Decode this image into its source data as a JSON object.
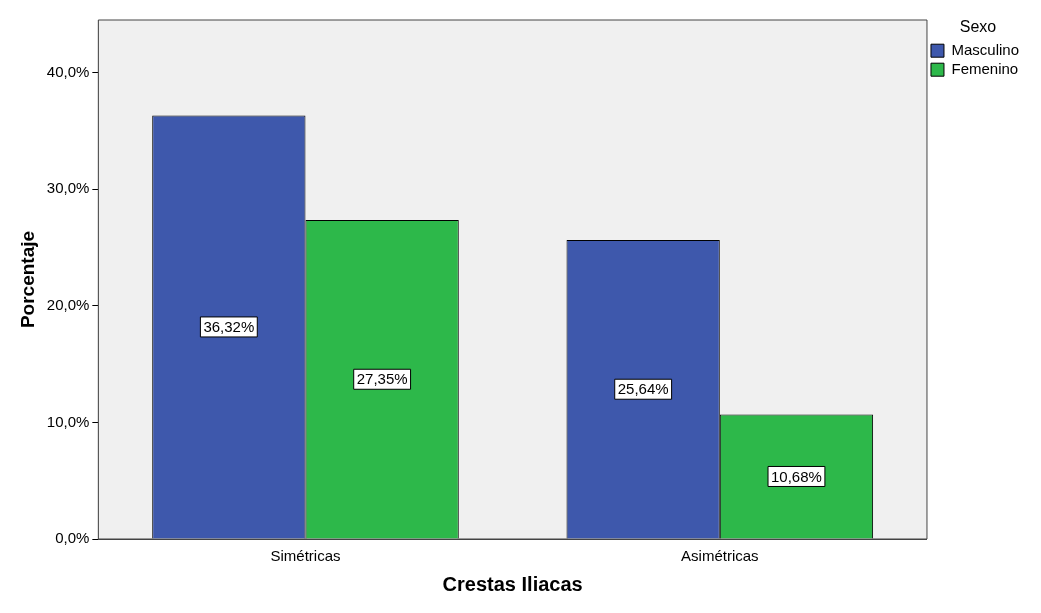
{
  "chart_data": {
    "type": "bar",
    "xlabel": "Crestas Iliacas",
    "ylabel": "Porcentaje",
    "legend_title": "Sexo",
    "legend": "top right",
    "grid": false,
    "categories": [
      "Simétricas",
      "Asimétricas"
    ],
    "series": [
      {
        "name": "Masculino",
        "color": "#3e58ac",
        "values": [
          36.32,
          25.64
        ],
        "value_labels": [
          "36,32%",
          "25,64%"
        ]
      },
      {
        "name": "Femenino",
        "color": "#2db84a",
        "values": [
          27.35,
          10.68
        ],
        "value_labels": [
          "27,35%",
          "10,68%"
        ]
      }
    ],
    "ylim": [
      0,
      44.5
    ],
    "yticks": [
      {
        "value": 0,
        "label": "0,0%"
      },
      {
        "value": 10,
        "label": "10,0%"
      },
      {
        "value": 20,
        "label": "20,0%"
      },
      {
        "value": 30,
        "label": "30,0%"
      },
      {
        "value": 40,
        "label": "40,0%"
      }
    ]
  }
}
